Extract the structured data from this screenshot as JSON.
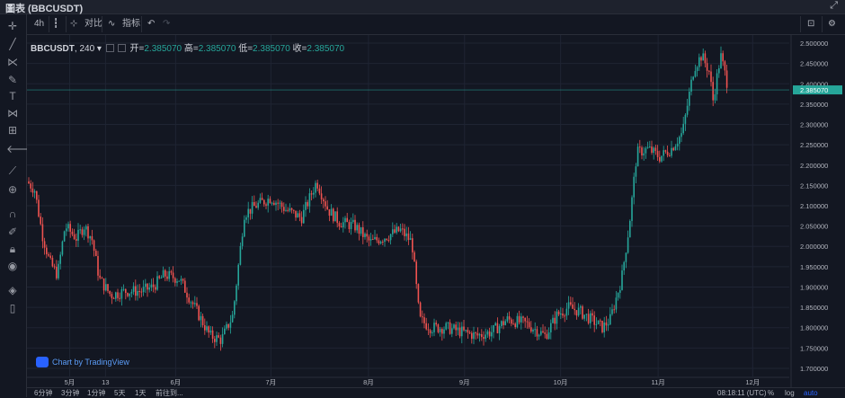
{
  "window": {
    "title": "圖表 (BBCUSDT)"
  },
  "toolbar": {
    "interval": "4h",
    "compare": "对比",
    "indicators": "指标"
  },
  "legend": {
    "symbol": "BBCUSDT",
    "interval": "240",
    "open_label": "开=",
    "open": "2.385070",
    "high_label": "高=",
    "high": "2.385070",
    "low_label": "低=",
    "low": "2.385070",
    "close_label": "收=",
    "close": "2.385070"
  },
  "watermark": "Chart by TradingView",
  "bottom": {
    "ranges": [
      "6分钟",
      "3分钟",
      "1分钟",
      "5天",
      "1天",
      "前往到..."
    ],
    "time": "08:18:11 (UTC)",
    "percent": "%",
    "log": "log",
    "auto": "auto"
  },
  "colors": {
    "up": "#26a69a",
    "down": "#ef5350",
    "background": "#131722",
    "grid": "#1f2433",
    "last_price": "#26a69a"
  },
  "chart_data": {
    "type": "candlestick",
    "y_ticks": [
      "2.500000",
      "2.450000",
      "2.400000",
      "2.350000",
      "2.300000",
      "2.250000",
      "2.200000",
      "2.150000",
      "2.100000",
      "2.050000",
      "2.000000",
      "1.950000",
      "1.900000",
      "1.850000",
      "1.800000",
      "1.750000",
      "1.700000"
    ],
    "ylim": [
      1.68,
      2.52
    ],
    "x_ticks": [
      {
        "label": "5月",
        "x": 0.056
      },
      {
        "label": "13",
        "x": 0.103
      },
      {
        "label": "6月",
        "x": 0.195
      },
      {
        "label": "7月",
        "x": 0.32
      },
      {
        "label": "8月",
        "x": 0.448
      },
      {
        "label": "9月",
        "x": 0.574
      },
      {
        "label": "10月",
        "x": 0.7
      },
      {
        "label": "11月",
        "x": 0.828
      },
      {
        "label": "12月",
        "x": 0.952
      }
    ],
    "last_price": "2.385070",
    "last_price_value": 2.385,
    "path": [
      [
        0.0,
        2.16
      ],
      [
        0.01,
        2.14
      ],
      [
        0.02,
        2.03
      ],
      [
        0.03,
        1.96
      ],
      [
        0.04,
        1.93
      ],
      [
        0.05,
        2.05
      ],
      [
        0.065,
        2.02
      ],
      [
        0.075,
        2.05
      ],
      [
        0.085,
        2.02
      ],
      [
        0.095,
        1.92
      ],
      [
        0.11,
        1.88
      ],
      [
        0.13,
        1.89
      ],
      [
        0.15,
        1.89
      ],
      [
        0.165,
        1.9
      ],
      [
        0.18,
        1.93
      ],
      [
        0.2,
        1.92
      ],
      [
        0.22,
        1.85
      ],
      [
        0.24,
        1.78
      ],
      [
        0.255,
        1.77
      ],
      [
        0.27,
        1.83
      ],
      [
        0.285,
        2.08
      ],
      [
        0.3,
        2.1
      ],
      [
        0.32,
        2.12
      ],
      [
        0.34,
        2.09
      ],
      [
        0.36,
        2.07
      ],
      [
        0.38,
        2.16
      ],
      [
        0.395,
        2.09
      ],
      [
        0.41,
        2.06
      ],
      [
        0.43,
        2.05
      ],
      [
        0.45,
        2.01
      ],
      [
        0.465,
        2.02
      ],
      [
        0.49,
        2.04
      ],
      [
        0.505,
        2.01
      ],
      [
        0.515,
        1.82
      ],
      [
        0.53,
        1.8
      ],
      [
        0.55,
        1.8
      ],
      [
        0.57,
        1.79
      ],
      [
        0.59,
        1.78
      ],
      [
        0.61,
        1.79
      ],
      [
        0.63,
        1.82
      ],
      [
        0.655,
        1.81
      ],
      [
        0.68,
        1.78
      ],
      [
        0.695,
        1.83
      ],
      [
        0.71,
        1.85
      ],
      [
        0.725,
        1.84
      ],
      [
        0.74,
        1.82
      ],
      [
        0.755,
        1.8
      ],
      [
        0.765,
        1.82
      ],
      [
        0.78,
        1.92
      ],
      [
        0.79,
        2.05
      ],
      [
        0.8,
        2.23
      ],
      [
        0.815,
        2.24
      ],
      [
        0.83,
        2.22
      ],
      [
        0.845,
        2.24
      ],
      [
        0.86,
        2.28
      ],
      [
        0.875,
        2.44
      ],
      [
        0.885,
        2.47
      ],
      [
        0.895,
        2.43
      ],
      [
        0.9,
        2.36
      ],
      [
        0.91,
        2.47
      ],
      [
        0.92,
        2.39
      ]
    ]
  }
}
